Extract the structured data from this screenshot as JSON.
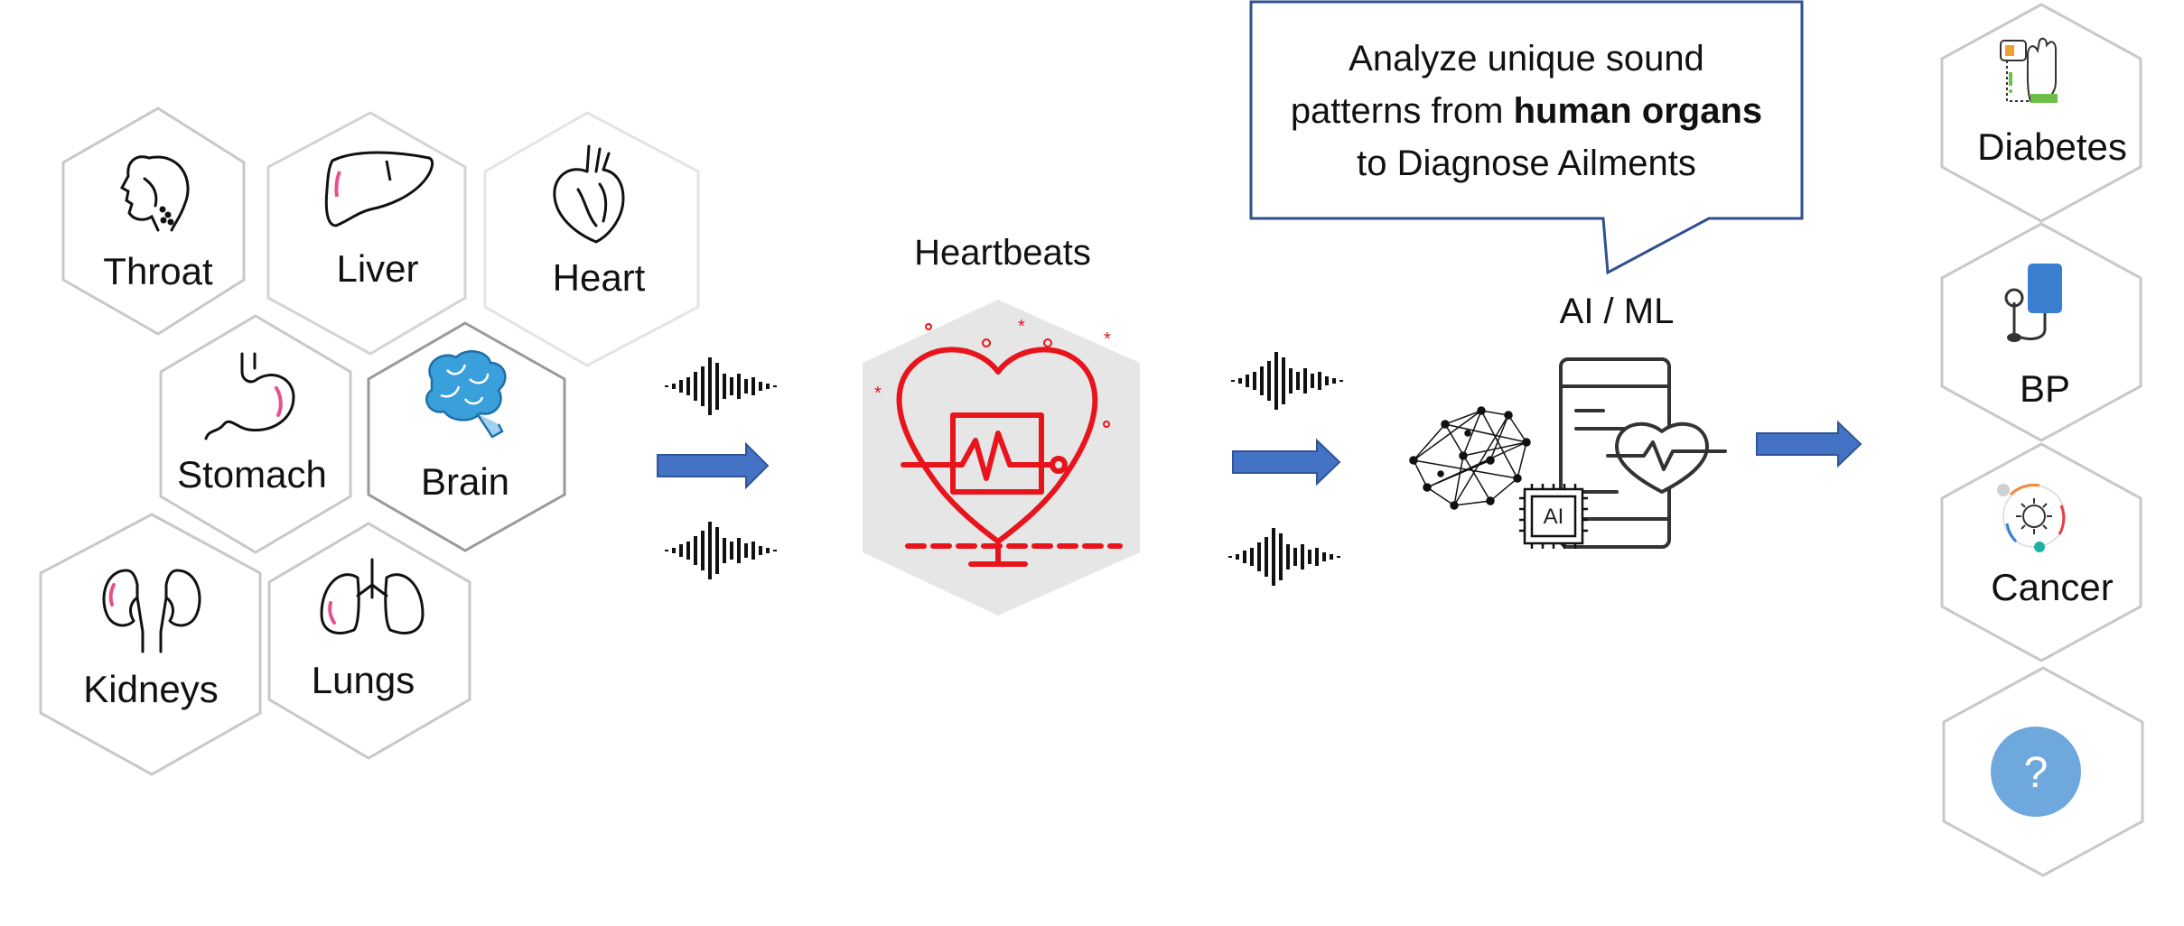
{
  "organs": {
    "throat": "Throat",
    "liver": "Liver",
    "heart": "Heart",
    "stomach": "Stomach",
    "brain": "Brain",
    "kidneys": "Kidneys",
    "lungs": "Lungs"
  },
  "heartbeats": {
    "label": "Heartbeats"
  },
  "ai": {
    "label": "AI / ML",
    "chip": "AI"
  },
  "callout": {
    "line1": "Analyze unique sound",
    "line2_pre": "patterns from ",
    "line2_bold": "human organs",
    "line3": "to Diagnose Ailments"
  },
  "outcomes": {
    "diabetes": "Diabetes",
    "bp": "BP",
    "cancer": "Cancer",
    "unknown": "?"
  },
  "colors": {
    "hex_stroke": "#c8c8c8",
    "arrow": "#4472c4",
    "heart_red": "#e8141c",
    "accent_pink": "#e8508a",
    "brain_blue": "#3aa0dc",
    "bp_blue": "#3a7fd0",
    "question_bubble": "#6fa8dc",
    "callout_border": "#2f4f8f"
  },
  "icons": [
    "throat-icon",
    "liver-icon",
    "heart-organ-icon",
    "stomach-icon",
    "brain-icon",
    "kidneys-icon",
    "lungs-icon",
    "sound-wave-icon",
    "arrow-right-icon",
    "heart-monitor-icon",
    "neural-network-icon",
    "ai-chip-icon",
    "health-app-icon",
    "glucose-meter-icon",
    "blood-pressure-icon",
    "virus-icon",
    "question-icon"
  ]
}
